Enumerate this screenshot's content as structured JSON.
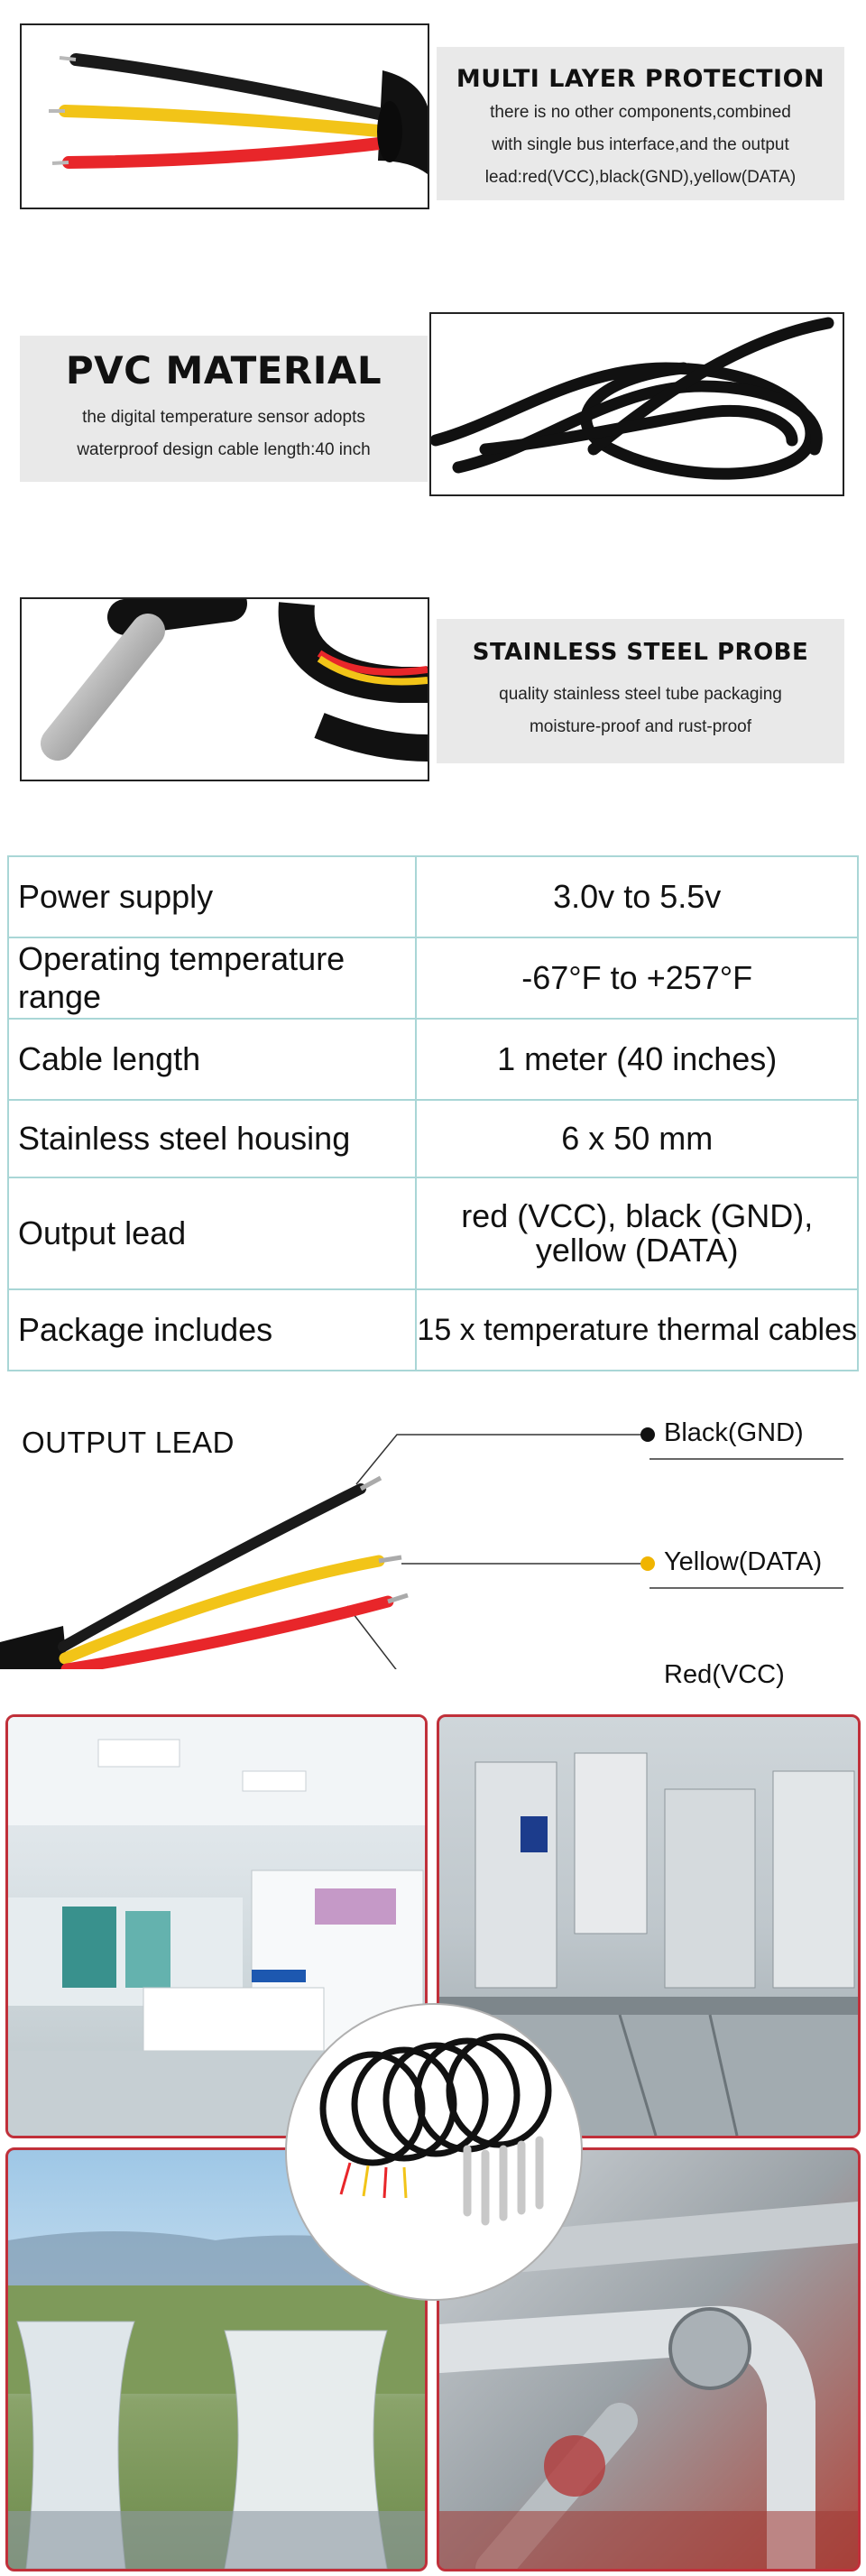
{
  "sections": {
    "multi_layer": {
      "title": "MULTI LAYER PROTECTION",
      "desc_lines": [
        "there is no other components,combined",
        "with single bus interface,and the output",
        "lead:red(VCC),black(GND),yellow(DATA)"
      ]
    },
    "pvc": {
      "title": "PVC MATERIAL",
      "desc_lines": [
        "the digital temperature sensor adopts",
        "waterproof design cable length:40 inch"
      ]
    },
    "probe": {
      "title": "STAINLESS STEEL PROBE",
      "desc_lines": [
        "quality stainless steel tube packaging",
        "moisture-proof and rust-proof"
      ]
    }
  },
  "spec_table": {
    "rows": [
      {
        "label": "Power supply",
        "value": "3.0v to 5.5v"
      },
      {
        "label": "Operating temperature range",
        "value": "-67°F to +257°F"
      },
      {
        "label": "Cable length",
        "value": "1 meter (40 inches)"
      },
      {
        "label": "Stainless steel housing",
        "value": "6 x 50 mm"
      },
      {
        "label": "Output lead",
        "value": "red (VCC), black (GND),\nyellow (DATA)"
      },
      {
        "label": "Package includes",
        "value": "15 x temperature thermal cables"
      }
    ]
  },
  "output_lead": {
    "title": "OUTPUT LEAD",
    "labels": {
      "black": "Black(GND)",
      "yellow": "Yellow(DATA)",
      "red": "Red(VCC)"
    }
  },
  "colors": {
    "wire_black": "#1a1a1a",
    "wire_yellow": "#f2c418",
    "wire_red": "#e8262a",
    "dot_yellow": "#f0b400",
    "dot_red": "#e02020",
    "table_border": "#a9d6d6",
    "photo_border": "#c0303a"
  }
}
